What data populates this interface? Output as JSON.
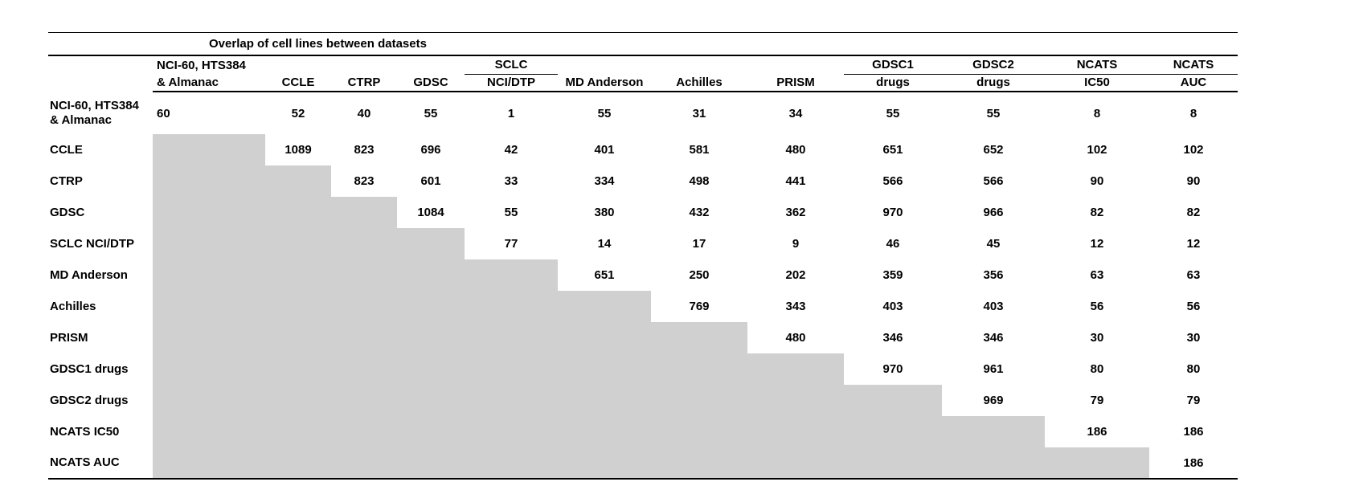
{
  "title": "Overlap of cell lines between datasets",
  "header": {
    "row1": [
      "NCI-60, HTS384",
      "",
      "",
      "",
      "SCLC",
      "",
      "",
      "",
      "GDSC1",
      "GDSC2",
      "NCATS",
      "NCATS"
    ],
    "row2": [
      "& Almanac",
      "CCLE",
      "CTRP",
      "GDSC",
      "NCI/DTP",
      "MD Anderson",
      "Achilles",
      "PRISM",
      "drugs",
      "drugs",
      "IC50",
      "AUC"
    ]
  },
  "row_labels": [
    "NCI-60, HTS384\n& Almanac",
    "CCLE",
    "CTRP",
    "GDSC",
    "SCLC NCI/DTP",
    "MD Anderson",
    "Achilles",
    "PRISM",
    "GDSC1 drugs",
    "GDSC2 drugs",
    "NCATS IC50",
    "NCATS AUC"
  ],
  "colors": {
    "shade_gray": "#d0d0d0",
    "rule_black": "#000000",
    "text": "#000000",
    "background": "#ffffff"
  },
  "chart_data": {
    "type": "table",
    "title": "Overlap of cell lines between datasets",
    "column_labels": [
      "NCI-60, HTS384 & Almanac",
      "CCLE",
      "CTRP",
      "GDSC",
      "SCLC NCI/DTP",
      "MD Anderson",
      "Achilles",
      "PRISM",
      "GDSC1 drugs",
      "GDSC2 drugs",
      "NCATS IC50",
      "NCATS AUC"
    ],
    "row_labels": [
      "NCI-60, HTS384 & Almanac",
      "CCLE",
      "CTRP",
      "GDSC",
      "SCLC NCI/DTP",
      "MD Anderson",
      "Achilles",
      "PRISM",
      "GDSC1 drugs",
      "GDSC2 drugs",
      "NCATS IC50",
      "NCATS AUC"
    ],
    "matrix": [
      [
        60,
        52,
        40,
        55,
        1,
        55,
        31,
        34,
        55,
        55,
        8,
        8
      ],
      [
        null,
        1089,
        823,
        696,
        42,
        401,
        581,
        480,
        651,
        652,
        102,
        102
      ],
      [
        null,
        null,
        823,
        601,
        33,
        334,
        498,
        441,
        566,
        566,
        90,
        90
      ],
      [
        null,
        null,
        null,
        1084,
        55,
        380,
        432,
        362,
        970,
        966,
        82,
        82
      ],
      [
        null,
        null,
        null,
        null,
        77,
        14,
        17,
        9,
        46,
        45,
        12,
        12
      ],
      [
        null,
        null,
        null,
        null,
        null,
        651,
        250,
        202,
        359,
        356,
        63,
        63
      ],
      [
        null,
        null,
        null,
        null,
        null,
        null,
        769,
        343,
        403,
        403,
        56,
        56
      ],
      [
        null,
        null,
        null,
        null,
        null,
        null,
        null,
        480,
        346,
        346,
        30,
        30
      ],
      [
        null,
        null,
        null,
        null,
        null,
        null,
        null,
        null,
        970,
        961,
        80,
        80
      ],
      [
        null,
        null,
        null,
        null,
        null,
        null,
        null,
        null,
        null,
        969,
        79,
        79
      ],
      [
        null,
        null,
        null,
        null,
        null,
        null,
        null,
        null,
        null,
        null,
        186,
        186
      ],
      [
        null,
        null,
        null,
        null,
        null,
        null,
        null,
        null,
        null,
        null,
        null,
        186
      ]
    ],
    "layout": {
      "triangular": "upper",
      "lower_triangle": "shaded gray, no values",
      "header_group_underlines": [
        "SCLC",
        "GDSC1 drugs..NCATS AUC"
      ]
    }
  }
}
